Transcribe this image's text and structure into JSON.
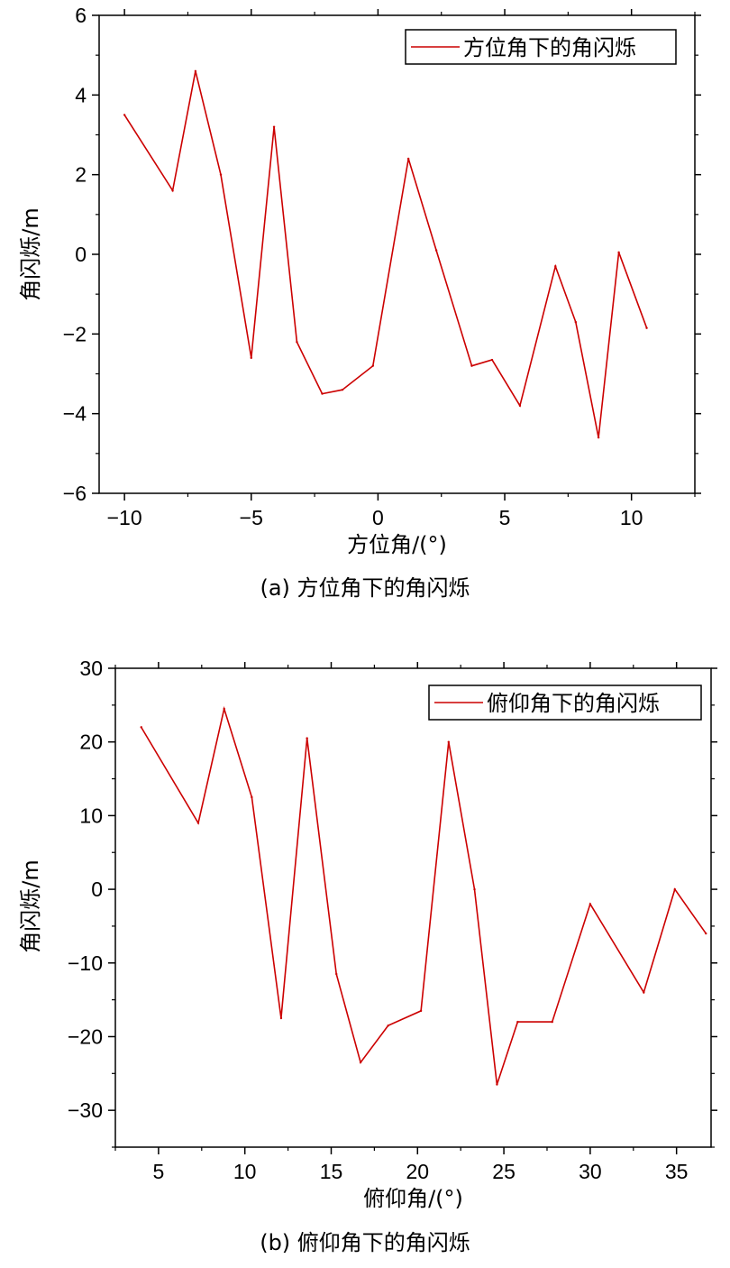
{
  "chart_data": [
    {
      "type": "line",
      "caption": "(a) 方位角下的角闪烁",
      "xlabel": "方位角/(°)",
      "ylabel": "角闪烁/m",
      "xlim": [
        -11,
        12.5
      ],
      "ylim": [
        -6,
        6
      ],
      "xticks": [
        -10,
        -5,
        0,
        5,
        10
      ],
      "xtick_labels": [
        "−10",
        "−5",
        "0",
        "5",
        "10"
      ],
      "yticks": [
        -6,
        -4,
        -2,
        0,
        2,
        4,
        6
      ],
      "ytick_labels": [
        "−6",
        "−4",
        "−2",
        "0",
        "2",
        "4",
        "6"
      ],
      "legend_position": "top-right",
      "grid": false,
      "series": [
        {
          "name": "方位角下的角闪烁",
          "color": "#cc0000",
          "x": [
            -10,
            -8.1,
            -7.2,
            -6.2,
            -5.0,
            -4.1,
            -3.2,
            -2.2,
            -1.4,
            -0.2,
            1.2,
            2.3,
            3.7,
            4.5,
            5.6,
            7.0,
            7.8,
            8.7,
            9.5,
            10.6
          ],
          "y": [
            3.5,
            1.6,
            4.6,
            2.0,
            -2.6,
            3.2,
            -2.2,
            -3.5,
            -3.4,
            -2.8,
            2.4,
            0.1,
            -2.8,
            -2.65,
            -3.8,
            -0.3,
            -1.7,
            -4.6,
            0.05,
            -1.85
          ]
        }
      ]
    },
    {
      "type": "line",
      "caption": "(b) 俯仰角下的角闪烁",
      "xlabel": "俯仰角/(°)",
      "ylabel": "角闪烁/m",
      "xlim": [
        2.5,
        37
      ],
      "ylim": [
        -35,
        30
      ],
      "xticks": [
        5,
        10,
        15,
        20,
        25,
        30,
        35
      ],
      "xtick_labels": [
        "5",
        "10",
        "15",
        "20",
        "25",
        "30",
        "35"
      ],
      "yticks": [
        -30,
        -20,
        -10,
        0,
        10,
        20,
        30
      ],
      "ytick_labels": [
        "−30",
        "−20",
        "−10",
        "0",
        "10",
        "20",
        "30"
      ],
      "legend_position": "top-right",
      "grid": false,
      "series": [
        {
          "name": "俯仰角下的角闪烁",
          "color": "#cc0000",
          "x": [
            4.0,
            7.3,
            8.8,
            10.4,
            12.1,
            13.6,
            15.3,
            16.7,
            18.3,
            20.2,
            21.8,
            23.3,
            24.6,
            25.8,
            27.8,
            30.0,
            33.1,
            34.9,
            36.7
          ],
          "y": [
            22,
            9,
            24.5,
            12.5,
            -17.5,
            20.5,
            -11.5,
            -23.5,
            -18.5,
            -16.5,
            20,
            0,
            -26.5,
            -18,
            -18,
            -2,
            -14,
            0,
            -6
          ]
        }
      ]
    }
  ]
}
